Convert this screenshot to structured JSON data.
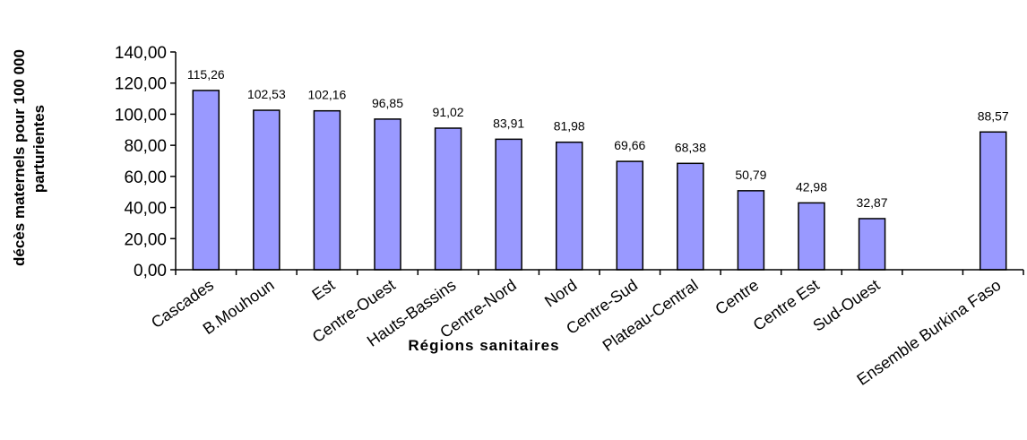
{
  "chart_data": {
    "type": "bar",
    "title": "",
    "xlabel": "Régions sanitaires",
    "ylabel_lines": [
      "décès maternels pour 100 000",
      "parturientes"
    ],
    "ylim": [
      0,
      140
    ],
    "yticks": [
      "0,00",
      "20,00",
      "40,00",
      "60,00",
      "80,00",
      "100,00",
      "120,00",
      "140,00"
    ],
    "grid": false,
    "legend": "none",
    "bar_color": "#9999ff",
    "categories": [
      "Cascades",
      "B.Mouhoun",
      "Est",
      "Centre-Ouest",
      "Hauts-Bassins",
      "Centre-Nord",
      "Nord",
      "Centre-Sud",
      "Plateau-Central",
      "Centre",
      "Centre Est",
      "Sud-Ouest",
      "",
      "Ensemble Burkina Faso"
    ],
    "values": [
      115.26,
      102.53,
      102.16,
      96.85,
      91.02,
      83.91,
      81.98,
      69.66,
      68.38,
      50.79,
      42.98,
      32.87,
      null,
      88.57
    ],
    "data_labels": [
      "115,26",
      "102,53",
      "102,16",
      "96,85",
      "91,02",
      "83,91",
      "81,98",
      "69,66",
      "68,38",
      "50,79",
      "42,98",
      "32,87",
      "",
      "88,57"
    ]
  }
}
